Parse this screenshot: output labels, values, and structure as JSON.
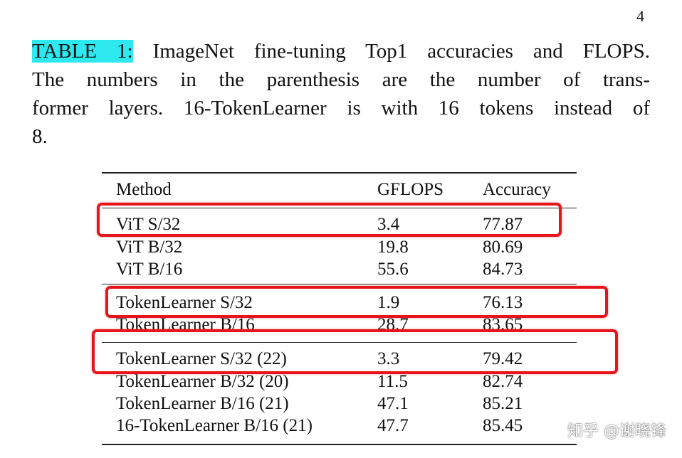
{
  "page_number": "4",
  "caption": {
    "label": "TABLE 1:",
    "lines": [
      "ImageNet fine-tuning Top1 accuracies and FLOPS.",
      "The numbers in the parenthesis are the number of trans-",
      "former layers. 16-TokenLearner is with 16 tokens instead of",
      "8."
    ]
  },
  "table": {
    "header": [
      "Method",
      "GFLOPS",
      "Accuracy"
    ],
    "groups": [
      {
        "rows": [
          [
            "ViT S/32",
            "3.4",
            "77.87"
          ],
          [
            "ViT B/32",
            "19.8",
            "80.69"
          ],
          [
            "ViT B/16",
            "55.6",
            "84.73"
          ]
        ]
      },
      {
        "rows": [
          [
            "TokenLearner S/32",
            "1.9",
            "76.13"
          ],
          [
            "TokenLearner B/16",
            "28.7",
            "83.65"
          ]
        ]
      },
      {
        "rows": [
          [
            "TokenLearner S/32 (22)",
            "3.3",
            "79.42"
          ],
          [
            "TokenLearner B/32 (20)",
            "11.5",
            "82.74"
          ],
          [
            "TokenLearner B/16 (21)",
            "47.1",
            "85.21"
          ],
          [
            "16-TokenLearner B/16 (21)",
            "47.7",
            "85.45"
          ]
        ]
      }
    ]
  },
  "watermark": "知乎 @谢晓锋"
}
